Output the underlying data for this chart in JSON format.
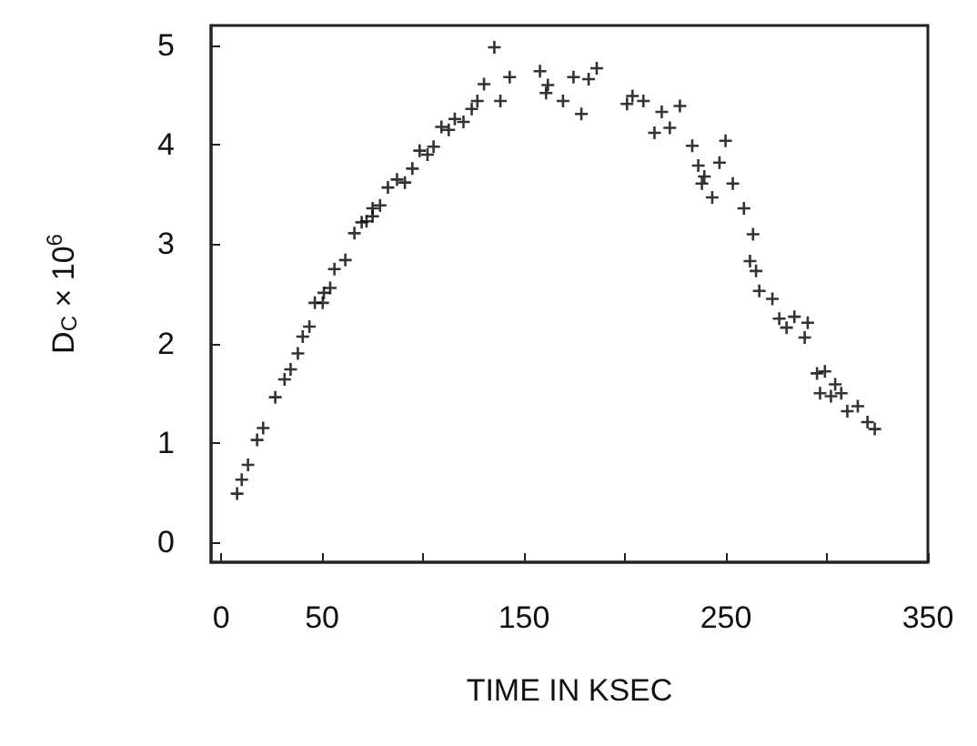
{
  "chart_data": {
    "type": "scatter",
    "xlabel": "TIME IN KSEC",
    "ylabel": "D$_{C}$ × 10$^{6}$",
    "marker": "cross",
    "grid": false,
    "xlim": [
      -5,
      350
    ],
    "xticks": [
      0,
      50,
      {
        "value": 100,
        "label": null
      },
      150,
      {
        "value": 200,
        "label": null
      },
      250,
      {
        "value": 300,
        "label": null
      },
      350
    ],
    "ylim": [
      -0.2,
      5.2
    ],
    "yticks": [
      0,
      1,
      2,
      3,
      4,
      5
    ],
    "series": [
      {
        "color": "#000000",
        "x": [
          7.9,
          10.2,
          13.3,
          17.8,
          20.8,
          26.8,
          31.4,
          34.4,
          38.0,
          40.4,
          43.7,
          46.4,
          50.3,
          50.9,
          54,
          56.1,
          61.5,
          66,
          69.6,
          72,
          75,
          75,
          78.7,
          82.6,
          87.1,
          91,
          94.7,
          98.3,
          102.2,
          105.2,
          109.1,
          112.7,
          115.7,
          120,
          124.1,
          126.9,
          130.2,
          135.3,
          138.3,
          142.9,
          157.9,
          161.8,
          160.9,
          169.3,
          174.5,
          178.4,
          182,
          186,
          201,
          203.7,
          209.1,
          214.6,
          218.2,
          222.2,
          227.2,
          233.3,
          236.3,
          239.3,
          238.1,
          246.8,
          243.2,
          249.8,
          253.4,
          258.9,
          263.4,
          261.9,
          264.9,
          266.5,
          273,
          276.4,
          280,
          283.9,
          289,
          290.5,
          295.1,
          299,
          304.1,
          302,
          296.6,
          307.1,
          310.1,
          315.3,
          320.1,
          323.7
        ],
        "values": [
          0.49,
          0.63,
          0.78,
          1.03,
          1.15,
          1.46,
          1.64,
          1.74,
          1.9,
          2.07,
          2.17,
          2.41,
          2.41,
          2.51,
          2.56,
          2.75,
          2.84,
          3.11,
          3.22,
          3.23,
          3.28,
          3.36,
          3.39,
          3.57,
          3.65,
          3.62,
          3.76,
          3.94,
          3.9,
          3.98,
          4.18,
          4.15,
          4.26,
          4.23,
          4.36,
          4.44,
          4.61,
          4.98,
          4.44,
          4.68,
          4.74,
          4.6,
          4.52,
          4.44,
          4.68,
          4.31,
          4.66,
          4.77,
          4.41,
          4.49,
          4.44,
          4.12,
          4.33,
          4.17,
          4.39,
          3.99,
          3.79,
          3.68,
          3.61,
          3.82,
          3.47,
          4.04,
          3.61,
          3.36,
          3.1,
          2.83,
          2.73,
          2.53,
          2.45,
          2.25,
          2.16,
          2.27,
          2.06,
          2.21,
          1.7,
          1.72,
          1.59,
          1.47,
          1.5,
          1.5,
          1.32,
          1.37,
          1.21,
          1.14
        ]
      }
    ]
  }
}
